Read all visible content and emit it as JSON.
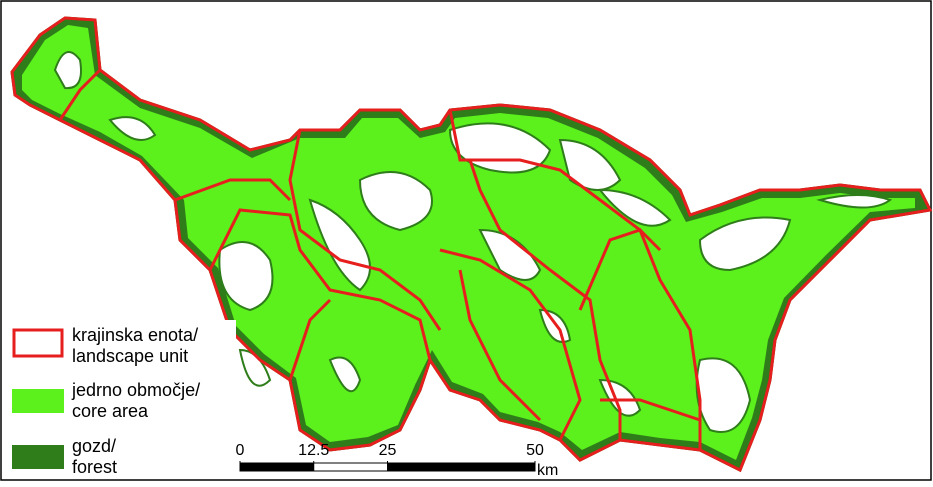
{
  "legend": [
    {
      "lines": [
        "krajinska enota/",
        "landscape unit"
      ]
    },
    {
      "lines": [
        "jedrno območje/",
        "core area"
      ]
    },
    {
      "lines": [
        "gozd/",
        "forest"
      ]
    }
  ],
  "scale_bar": {
    "ticks": [
      0,
      12.5,
      25,
      50
    ],
    "unit": "km"
  }
}
